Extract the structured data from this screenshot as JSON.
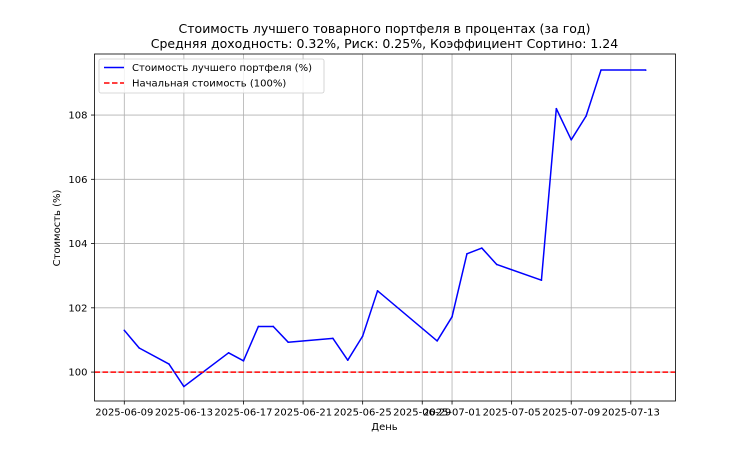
{
  "chart_data": {
    "type": "line",
    "title": "Стоимость лучшего товарного портфеля в процентах (за год)",
    "subtitle": "Средняя доходность: 0.32%, Риск: 0.25%, Коэффициент Сортино: 1.24",
    "xlabel": "День",
    "ylabel": "Стоимость (%)",
    "ylim": [
      99.1,
      109.9
    ],
    "xlim": [
      "2025-06-07",
      "2025-07-16"
    ],
    "yticks": [
      100,
      102,
      104,
      106,
      108
    ],
    "xticks": [
      "2025-06-09",
      "2025-06-13",
      "2025-06-17",
      "2025-06-21",
      "2025-06-25",
      "2025-06-29",
      "2025-07-01",
      "2025-07-05",
      "2025-07-09",
      "2025-07-13"
    ],
    "grid": true,
    "legend": "top-left",
    "series": [
      {
        "name": "Стоимость лучшего портфеля (%)",
        "color": "#0000ff",
        "style": "solid",
        "x": [
          "2025-06-09",
          "2025-06-10",
          "2025-06-12",
          "2025-06-13",
          "2025-06-16",
          "2025-06-17",
          "2025-06-18",
          "2025-06-19",
          "2025-06-20",
          "2025-06-23",
          "2025-06-24",
          "2025-06-25",
          "2025-06-26",
          "2025-06-30",
          "2025-07-01",
          "2025-07-02",
          "2025-07-03",
          "2025-07-04",
          "2025-07-07",
          "2025-07-08",
          "2025-07-09",
          "2025-07-10",
          "2025-07-11",
          "2025-07-14"
        ],
        "y": [
          101.3,
          100.75,
          100.25,
          99.55,
          100.6,
          100.35,
          101.42,
          101.42,
          100.93,
          101.05,
          100.37,
          101.12,
          102.53,
          100.97,
          101.72,
          103.68,
          103.86,
          103.35,
          102.86,
          108.2,
          107.23,
          107.97,
          109.4,
          109.4
        ]
      },
      {
        "name": "Начальная стоимость (100%)",
        "color": "#ff0000",
        "style": "dashed",
        "y_constant": 100
      }
    ]
  }
}
